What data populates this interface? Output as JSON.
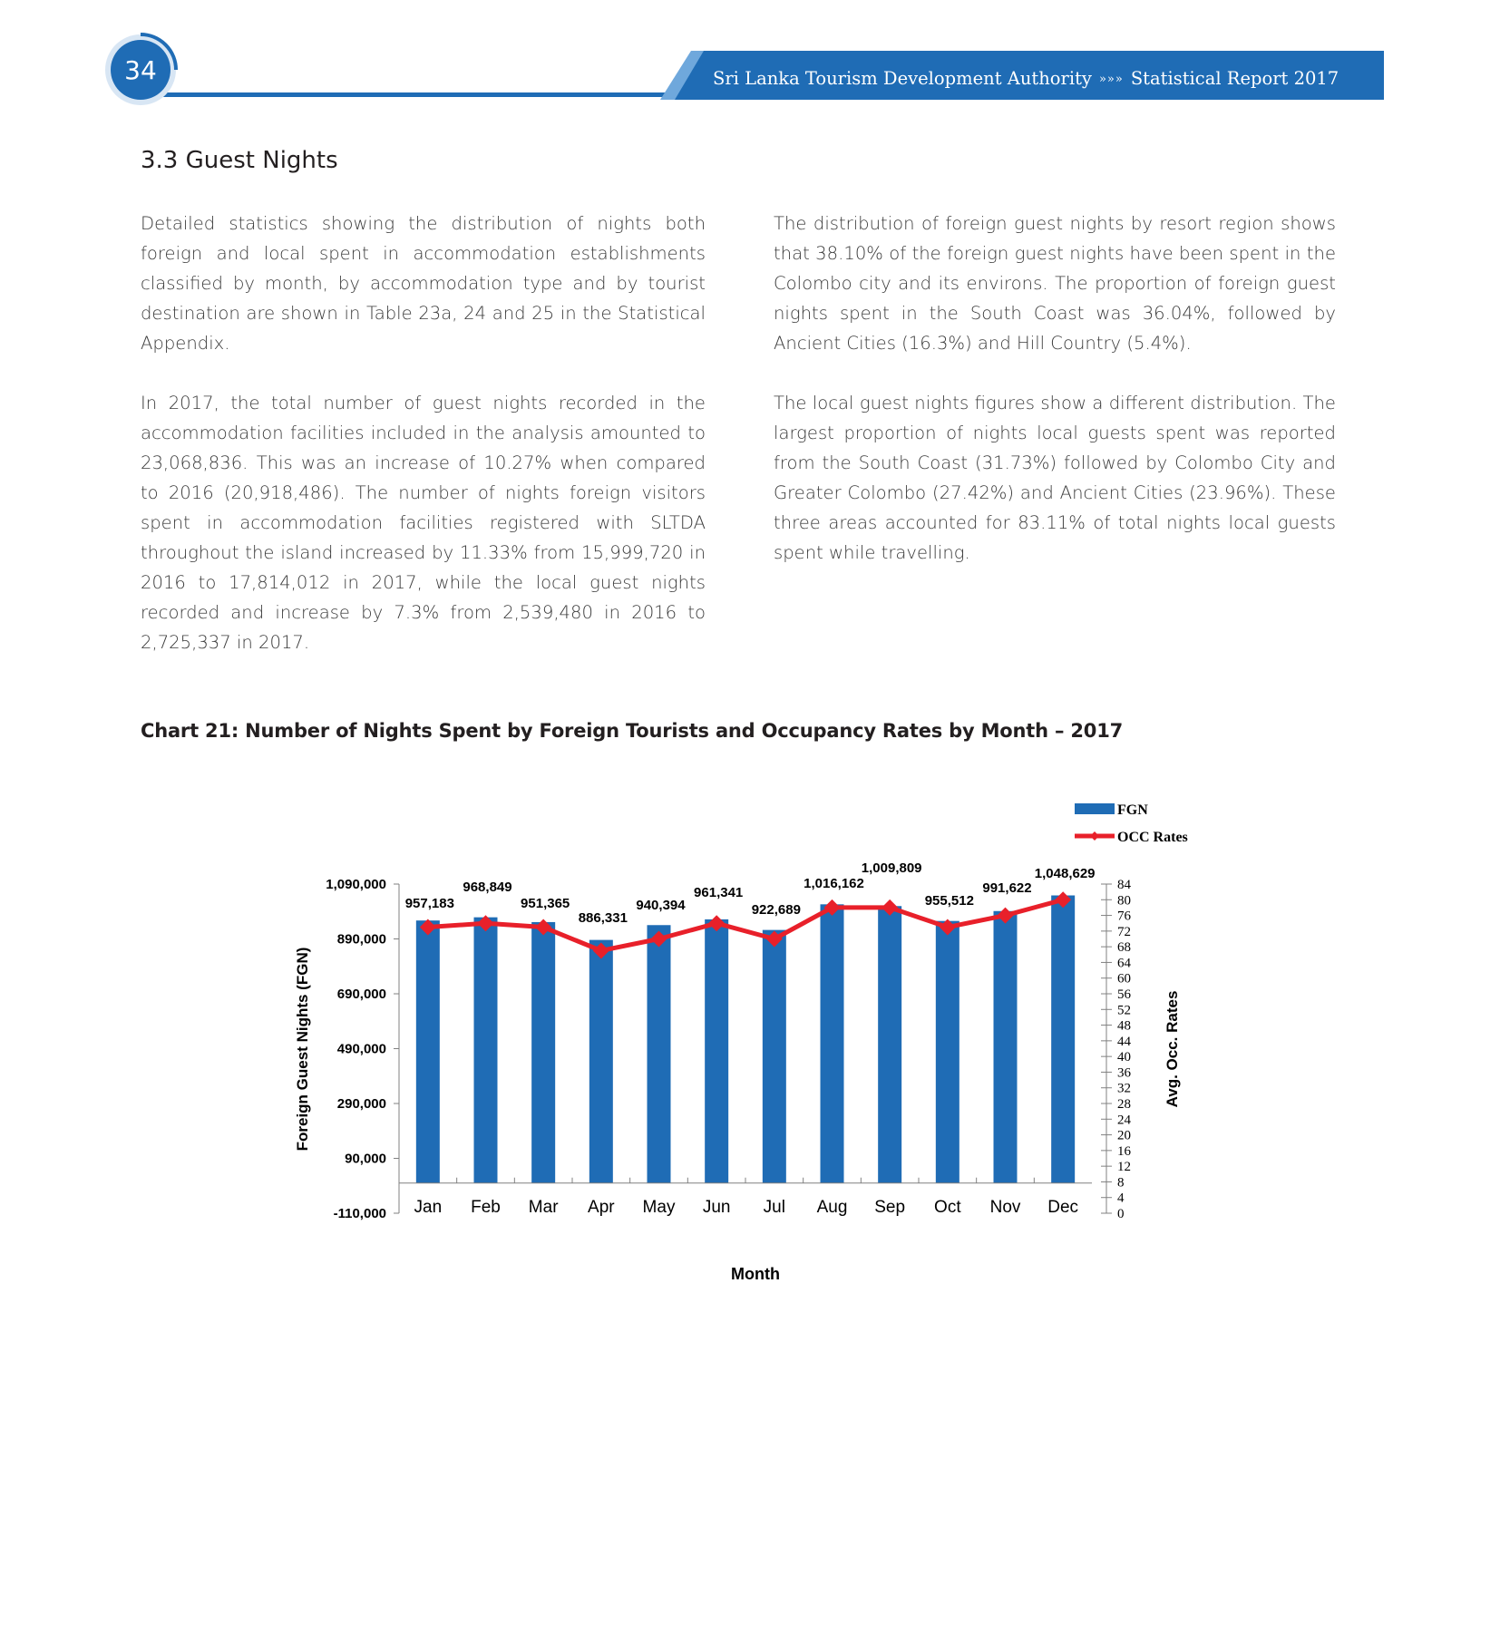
{
  "header": {
    "page_number": "34",
    "organization": "Sri Lanka Tourism Development Authority",
    "separator": "»»»",
    "report": "Statistical Report 2017",
    "colors": {
      "blue": "#1f6cb5",
      "light_blue": "#6fa8dc"
    }
  },
  "section": {
    "title": "3.3  Guest Nights"
  },
  "left_column": {
    "p1": "Detailed statistics showing the distribution of nights both foreign and local spent in accommodation establishments classified by month, by accommodation type and by tourist destination are shown in Table 23a, 24  and 25 in the Statistical Appendix.",
    "p2": "In 2017, the total number of guest nights recorded in the accommodation facilities included in the analysis amounted to 23,068,836. This was an increase of 10.27% when compared to 2016 (20,918,486). The number of nights foreign visitors spent in accommodation facilities registered with SLTDA throughout the island increased by 11.33% from 15,999,720 in 2016 to 17,814,012 in 2017, while the local guest nights recorded and increase by 7.3% from 2,539,480 in 2016 to 2,725,337 in 2017."
  },
  "right_column": {
    "p1": "The distribution of foreign guest nights by resort region shows that 38.10% of the foreign guest nights have been spent in the Colombo city and its environs. The proportion of foreign guest nights spent in the South Coast was 36.04%, followed by Ancient Cities (16.3%) and Hill Country (5.4%).",
    "p2": "The local guest nights figures show a different distribution. The largest proportion of nights local guests spent was reported from the South Coast (31.73%) followed by Colombo City and Greater Colombo (27.42%) and Ancient Cities (23.96%). These three areas accounted for 83.11% of total nights local guests spent while  travelling."
  },
  "chart_data": {
    "type": "bar",
    "title": "Chart 21: Number of Nights Spent by Foreign Tourists and Occupancy Rates by Month – 2017",
    "categories": [
      "Jan",
      "Feb",
      "Mar",
      "Apr",
      "May",
      "Jun",
      "Jul",
      "Aug",
      "Sep",
      "Oct",
      "Nov",
      "Dec"
    ],
    "series": [
      {
        "name": "FGN",
        "type": "bar",
        "axis": "left",
        "color": "#1f6cb5",
        "values": [
          957183,
          968849,
          951365,
          886331,
          940394,
          961341,
          922689,
          1016162,
          1009809,
          955512,
          991622,
          1048629
        ],
        "labels": [
          "957,183",
          "968,849",
          "951,365",
          "886,331",
          "940,394",
          "961,341",
          "922,689",
          "1,016,162",
          "1,009,809",
          "955,512",
          "991,622",
          "1,048,629"
        ]
      },
      {
        "name": "OCC Rates",
        "type": "line",
        "axis": "right",
        "color": "#e8202a",
        "values": [
          73,
          74,
          73,
          67,
          70,
          74,
          70,
          78,
          78,
          73,
          76,
          80
        ]
      }
    ],
    "xlabel": "Month",
    "ylabel": "Foreign Guest Nights (FGN)",
    "ylabel_right": "Avg. Occ. Rates",
    "ylim": [
      -110000,
      1090000
    ],
    "yticks": [
      "1,090,000",
      "890,000",
      "690,000",
      "490,000",
      "290,000",
      "90,000",
      "-110,000"
    ],
    "ytick_values": [
      1090000,
      890000,
      690000,
      490000,
      290000,
      90000,
      -110000
    ],
    "ylim_right": [
      0,
      84
    ],
    "yticks_right": [
      "84",
      "80",
      "76",
      "72",
      "68",
      "64",
      "60",
      "56",
      "52",
      "48",
      "44",
      "40",
      "36",
      "32",
      "28",
      "24",
      "20",
      "16",
      "12",
      "8",
      "4",
      "0"
    ],
    "ytick_right_values": [
      84,
      80,
      76,
      72,
      68,
      64,
      60,
      56,
      52,
      48,
      44,
      40,
      36,
      32,
      28,
      24,
      20,
      16,
      12,
      8,
      4,
      0
    ],
    "grid": false,
    "legend": "top-right"
  }
}
